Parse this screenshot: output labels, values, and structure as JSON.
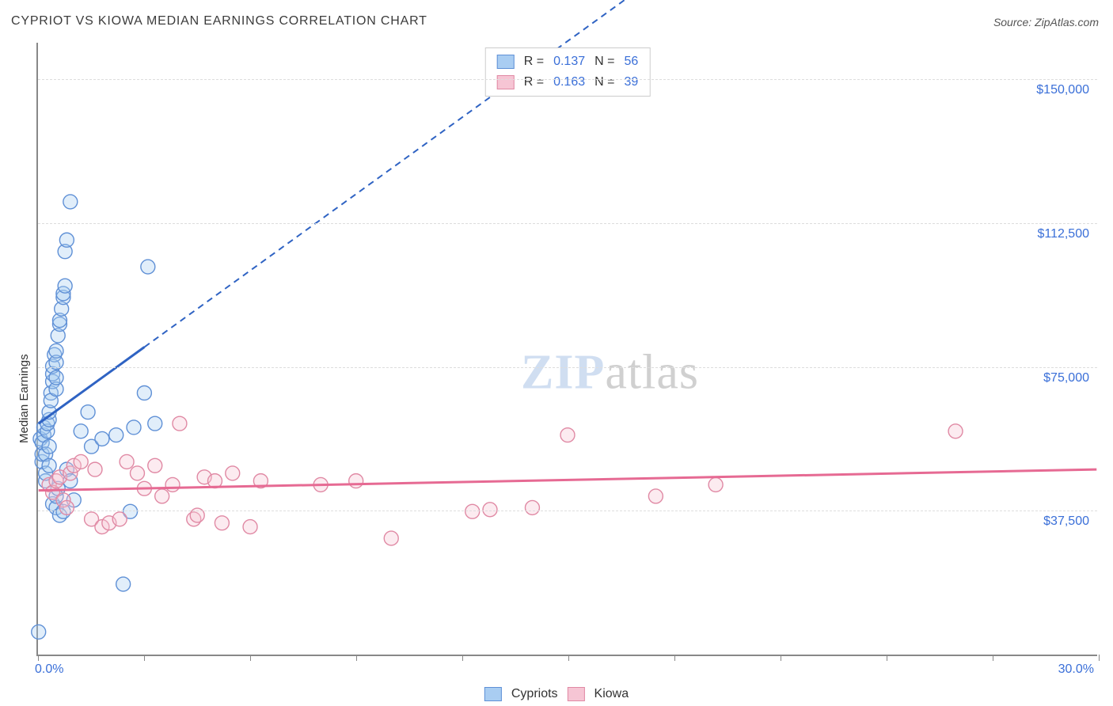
{
  "title": "CYPRIOT VS KIOWA MEDIAN EARNINGS CORRELATION CHART",
  "source": "Source: ZipAtlas.com",
  "watermark_zip": "ZIP",
  "watermark_atlas": "atlas",
  "yaxis_label": "Median Earnings",
  "chart": {
    "type": "scatter",
    "background_color": "#ffffff",
    "grid_color": "#dddddd",
    "axis_color": "#888888",
    "tick_label_color": "#3a6fd8",
    "tick_fontsize": 16,
    "xlim": [
      0.0,
      30.0
    ],
    "ylim": [
      0,
      160000
    ],
    "x_start_label": "0.0%",
    "x_end_label": "30.0%",
    "x_ticks": [
      0,
      3,
      6,
      9,
      12,
      15,
      18,
      21,
      24,
      27,
      30
    ],
    "y_ticks": [
      {
        "v": 37500,
        "label": "$37,500"
      },
      {
        "v": 75000,
        "label": "$75,000"
      },
      {
        "v": 112500,
        "label": "$112,500"
      },
      {
        "v": 150000,
        "label": "$150,000"
      }
    ],
    "marker_radius": 9,
    "marker_stroke_width": 1.4,
    "marker_fill_opacity": 0.35,
    "series": [
      {
        "name": "Cypriots",
        "color_fill": "#a9cdf2",
        "color_stroke": "#5f90d6",
        "color_line": "#2f63c3",
        "R": "0.137",
        "N": "56",
        "trend_solid": {
          "x1": 0.0,
          "y1": 60000,
          "x2": 3.0,
          "y2": 80000
        },
        "trend_dash": {
          "x1": 3.0,
          "y1": 80000,
          "x2": 30.0,
          "y2": 260000
        },
        "points": [
          [
            0.0,
            5500
          ],
          [
            0.05,
            56000
          ],
          [
            0.1,
            50000
          ],
          [
            0.1,
            52000
          ],
          [
            0.1,
            55000
          ],
          [
            0.15,
            57000
          ],
          [
            0.15,
            59000
          ],
          [
            0.2,
            52000
          ],
          [
            0.2,
            45000
          ],
          [
            0.2,
            47000
          ],
          [
            0.25,
            58000
          ],
          [
            0.25,
            60000
          ],
          [
            0.3,
            49000
          ],
          [
            0.3,
            54000
          ],
          [
            0.3,
            61000
          ],
          [
            0.3,
            63000
          ],
          [
            0.35,
            68000
          ],
          [
            0.35,
            66000
          ],
          [
            0.4,
            71000
          ],
          [
            0.4,
            73000
          ],
          [
            0.4,
            75000
          ],
          [
            0.45,
            78000
          ],
          [
            0.5,
            69000
          ],
          [
            0.5,
            72000
          ],
          [
            0.5,
            76000
          ],
          [
            0.5,
            79000
          ],
          [
            0.55,
            83000
          ],
          [
            0.6,
            86000
          ],
          [
            0.6,
            87000
          ],
          [
            0.65,
            90000
          ],
          [
            0.7,
            93000
          ],
          [
            0.7,
            94000
          ],
          [
            0.75,
            96000
          ],
          [
            0.75,
            105000
          ],
          [
            0.8,
            108000
          ],
          [
            0.9,
            118000
          ],
          [
            0.4,
            39000
          ],
          [
            0.5,
            38000
          ],
          [
            0.5,
            41000
          ],
          [
            0.55,
            43000
          ],
          [
            0.6,
            36000
          ],
          [
            0.7,
            37000
          ],
          [
            0.8,
            48000
          ],
          [
            0.9,
            45000
          ],
          [
            1.0,
            40000
          ],
          [
            1.2,
            58000
          ],
          [
            1.4,
            63000
          ],
          [
            1.5,
            54000
          ],
          [
            1.8,
            56000
          ],
          [
            2.2,
            57000
          ],
          [
            2.4,
            18000
          ],
          [
            2.6,
            37000
          ],
          [
            2.7,
            59000
          ],
          [
            3.0,
            68000
          ],
          [
            3.1,
            101000
          ],
          [
            3.3,
            60000
          ]
        ]
      },
      {
        "name": "Kiowa",
        "color_fill": "#f6c5d4",
        "color_stroke": "#e089a4",
        "color_line": "#e66a93",
        "R": "0.163",
        "N": "39",
        "trend_solid": {
          "x1": 0.0,
          "y1": 42500,
          "x2": 30.0,
          "y2": 48000
        },
        "trend_dash": null,
        "points": [
          [
            0.3,
            44000
          ],
          [
            0.4,
            42000
          ],
          [
            0.5,
            45000
          ],
          [
            0.6,
            46000
          ],
          [
            0.7,
            40000
          ],
          [
            0.8,
            38000
          ],
          [
            0.9,
            47000
          ],
          [
            1.0,
            49000
          ],
          [
            1.2,
            50000
          ],
          [
            1.5,
            35000
          ],
          [
            1.6,
            48000
          ],
          [
            1.8,
            33000
          ],
          [
            2.0,
            34000
          ],
          [
            2.3,
            35000
          ],
          [
            2.5,
            50000
          ],
          [
            2.8,
            47000
          ],
          [
            3.0,
            43000
          ],
          [
            3.3,
            49000
          ],
          [
            3.5,
            41000
          ],
          [
            3.8,
            44000
          ],
          [
            4.0,
            60000
          ],
          [
            4.4,
            35000
          ],
          [
            4.7,
            46000
          ],
          [
            5.0,
            45000
          ],
          [
            5.2,
            34000
          ],
          [
            5.5,
            47000
          ],
          [
            6.0,
            33000
          ],
          [
            6.3,
            45000
          ],
          [
            8.0,
            44000
          ],
          [
            9.0,
            45000
          ],
          [
            10.0,
            30000
          ],
          [
            12.3,
            37000
          ],
          [
            12.8,
            37500
          ],
          [
            14.0,
            38000
          ],
          [
            15.0,
            57000
          ],
          [
            17.5,
            41000
          ],
          [
            19.2,
            44000
          ],
          [
            26.0,
            58000
          ],
          [
            4.5,
            36000
          ]
        ]
      }
    ],
    "legend_top_labels": {
      "R": "R =",
      "N": "N ="
    },
    "legend_bottom": [
      {
        "label": "Cypriots",
        "fill": "#a9cdf2",
        "stroke": "#5f90d6"
      },
      {
        "label": "Kiowa",
        "fill": "#f6c5d4",
        "stroke": "#e089a4"
      }
    ]
  }
}
